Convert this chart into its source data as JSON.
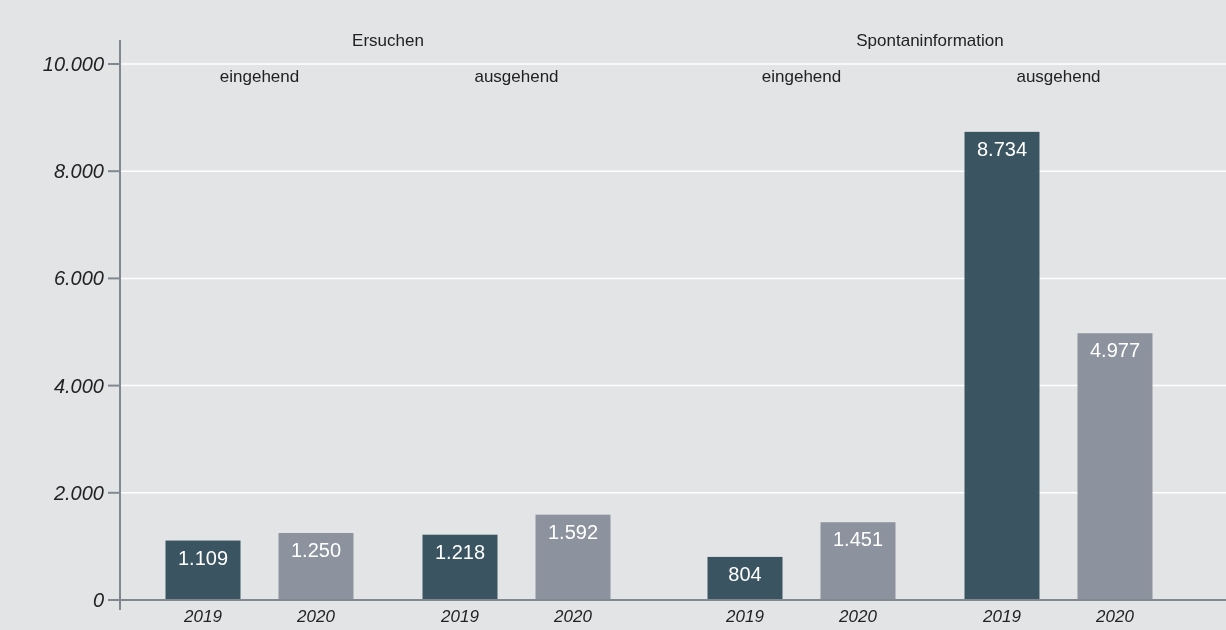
{
  "chart_data": {
    "type": "bar",
    "categories": [
      "2019",
      "2020",
      "2019",
      "2020",
      "2019",
      "2020",
      "2019",
      "2020"
    ],
    "values": [
      1109,
      1250,
      1218,
      1592,
      804,
      1451,
      8734,
      4977
    ],
    "colors": [
      "#3a5462",
      "#8c939e",
      "#3a5462",
      "#8c939e",
      "#3a5462",
      "#8c939e",
      "#3a5462",
      "#8c939e"
    ],
    "value_labels": [
      "1.109",
      "1.250",
      "1.218",
      "1.592",
      "804",
      "1.451",
      "8.734",
      "4.977"
    ],
    "ylim": [
      0,
      10000
    ],
    "yticks": [
      0,
      {
        "value": 2000,
        "label": "2.000"
      },
      {
        "value": 4000,
        "label": "4.000"
      },
      {
        "value": 6000,
        "label": "6.000"
      },
      {
        "value": 8000,
        "label": "8.000"
      },
      {
        "value": 10000,
        "label": "10.000"
      }
    ],
    "grid": "y",
    "annotations": [
      "Ersuchen",
      "Spontaninformation",
      "eingehend",
      "ausgehend",
      "eingehend",
      "ausgehend"
    ]
  }
}
